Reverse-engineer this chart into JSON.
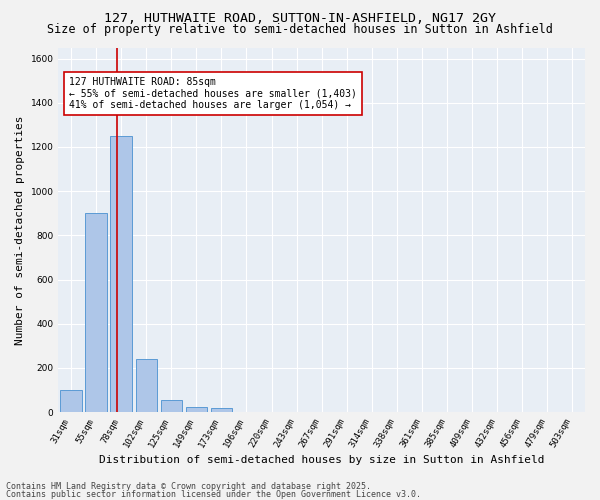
{
  "title1": "127, HUTHWAITE ROAD, SUTTON-IN-ASHFIELD, NG17 2GY",
  "title2": "Size of property relative to semi-detached houses in Sutton in Ashfield",
  "xlabel": "Distribution of semi-detached houses by size in Sutton in Ashfield",
  "ylabel": "Number of semi-detached properties",
  "categories": [
    "31sqm",
    "55sqm",
    "78sqm",
    "102sqm",
    "125sqm",
    "149sqm",
    "173sqm",
    "196sqm",
    "220sqm",
    "243sqm",
    "267sqm",
    "291sqm",
    "314sqm",
    "338sqm",
    "361sqm",
    "385sqm",
    "409sqm",
    "432sqm",
    "456sqm",
    "479sqm",
    "503sqm"
  ],
  "values": [
    100,
    900,
    1250,
    240,
    55,
    25,
    18,
    0,
    0,
    0,
    0,
    0,
    0,
    0,
    0,
    0,
    0,
    0,
    0,
    0,
    0
  ],
  "bar_color": "#aec6e8",
  "bar_edgecolor": "#5b9bd5",
  "property_label": "127 HUTHWAITE ROAD: 85sqm",
  "pct_smaller": "55% of semi-detached houses are smaller (1,403)",
  "pct_larger": "41% of semi-detached houses are larger (1,054)",
  "vline_color": "#cc0000",
  "annotation_box_edgecolor": "#cc0000",
  "ylim": [
    0,
    1650
  ],
  "yticks": [
    0,
    200,
    400,
    600,
    800,
    1000,
    1200,
    1400,
    1600
  ],
  "background_color": "#e8eef5",
  "grid_color": "#ffffff",
  "fig_background": "#f2f2f2",
  "footer1": "Contains HM Land Registry data © Crown copyright and database right 2025.",
  "footer2": "Contains public sector information licensed under the Open Government Licence v3.0.",
  "title_fontsize": 9.5,
  "subtitle_fontsize": 8.5,
  "tick_fontsize": 6.5,
  "ylabel_fontsize": 8,
  "xlabel_fontsize": 8,
  "footer_fontsize": 6,
  "annot_fontsize": 7,
  "vline_x": 1.85
}
